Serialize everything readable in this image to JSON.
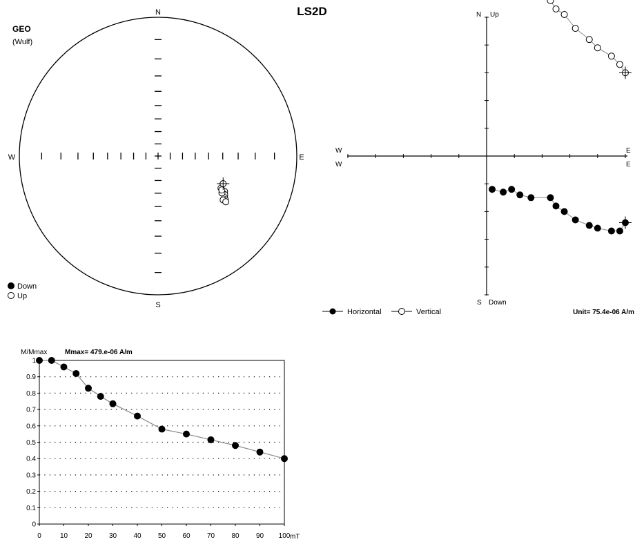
{
  "title": "LS2D",
  "chart_data": [
    {
      "type": "scatter",
      "name": "stereonet",
      "label": "GEO",
      "sublabel": "(Wulf)",
      "compass": {
        "n": "N",
        "s": "S",
        "e": "E",
        "w": "W"
      },
      "legend": [
        {
          "symbol": "filled",
          "label": "Down"
        },
        {
          "symbol": "open",
          "label": "Up"
        }
      ],
      "points_up": [
        {
          "dec": 117,
          "inc": -36
        },
        {
          "dec": 118,
          "inc": -33
        },
        {
          "dec": 120,
          "inc": -32
        },
        {
          "dec": 122,
          "inc": -31
        },
        {
          "dec": 123,
          "inc": -30
        },
        {
          "dec": 124,
          "inc": -31
        },
        {
          "dec": 124,
          "inc": -29
        },
        {
          "dec": 120,
          "inc": -34
        },
        {
          "dec": 118,
          "inc": -35
        }
      ],
      "current_point": {
        "dec": 113,
        "inc": -36
      }
    },
    {
      "type": "line",
      "name": "zijderveld",
      "labels": {
        "north": "N",
        "up": "Up",
        "south": "S",
        "down": "Down",
        "east": "E",
        "west": "W"
      },
      "legend": [
        {
          "symbol": "filled",
          "label": "Horizontal"
        },
        {
          "symbol": "open",
          "label": "Vertical"
        }
      ],
      "unit_text": "Unit=  75.4e-06 A/m",
      "vertical": [
        [
          5.0,
          3.0
        ],
        [
          4.8,
          3.3
        ],
        [
          4.5,
          3.6
        ],
        [
          4.0,
          3.9
        ],
        [
          3.7,
          4.2
        ],
        [
          3.2,
          4.6
        ],
        [
          2.8,
          5.1
        ],
        [
          2.5,
          5.3
        ],
        [
          2.3,
          5.6
        ],
        [
          1.6,
          5.8
        ],
        [
          1.2,
          6.1
        ],
        [
          0.9,
          6.1
        ],
        [
          0.6,
          6.3
        ],
        [
          0.2,
          6.4
        ]
      ],
      "horizontal": [
        [
          5.0,
          -2.4
        ],
        [
          4.8,
          -2.7
        ],
        [
          4.5,
          -2.7
        ],
        [
          4.0,
          -2.6
        ],
        [
          3.7,
          -2.5
        ],
        [
          3.2,
          -2.3
        ],
        [
          2.8,
          -2.0
        ],
        [
          2.5,
          -1.8
        ],
        [
          2.3,
          -1.5
        ],
        [
          1.6,
          -1.5
        ],
        [
          1.2,
          -1.4
        ],
        [
          0.9,
          -1.2
        ],
        [
          0.6,
          -1.3
        ],
        [
          0.2,
          -1.2
        ]
      ],
      "xlim": [
        -5,
        5
      ],
      "ylim": [
        -5,
        5
      ]
    },
    {
      "type": "line",
      "name": "intensity-decay",
      "ylabel": "M/Mmax",
      "mmax_text": "Mmax= 479.e-06  A/m",
      "xlabel": "mT",
      "x": [
        0,
        5,
        10,
        15,
        20,
        25,
        30,
        40,
        50,
        60,
        70,
        80,
        90,
        100
      ],
      "values": [
        1.0,
        1.0,
        0.96,
        0.92,
        0.83,
        0.78,
        0.735,
        0.66,
        0.58,
        0.55,
        0.515,
        0.48,
        0.44,
        0.4
      ],
      "xlim": [
        0,
        100
      ],
      "ylim": [
        0,
        1
      ],
      "xticks": [
        "0",
        "10",
        "20",
        "30",
        "40",
        "50",
        "60",
        "70",
        "80",
        "90",
        "100"
      ],
      "yticks": [
        "0",
        "0.1",
        "0.2",
        "0.3",
        "0.4",
        "0.5",
        "0.6",
        "0.7",
        "0.8",
        "0.9",
        "1"
      ],
      "grid": true
    }
  ]
}
